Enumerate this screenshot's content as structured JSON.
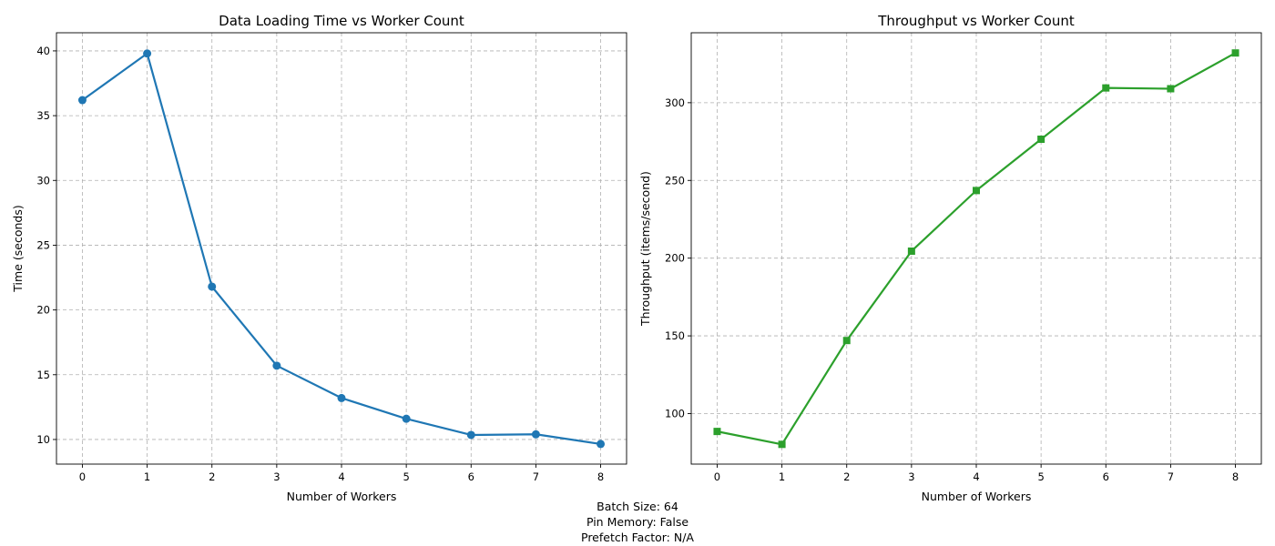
{
  "chart_data": [
    {
      "type": "line",
      "title": "Data Loading Time vs Worker Count",
      "xlabel": "Number of Workers",
      "ylabel": "Time (seconds)",
      "x": [
        0,
        1,
        2,
        3,
        4,
        5,
        6,
        7,
        8
      ],
      "series": [
        {
          "values": [
            36.2,
            39.8,
            21.8,
            15.7,
            13.2,
            11.6,
            10.35,
            10.4,
            9.65
          ],
          "color": "#1f77b4",
          "marker": "circle"
        }
      ],
      "xlim": [
        -0.4,
        8.4
      ],
      "ylim": [
        8.1,
        41.4
      ],
      "xticks": [
        0,
        1,
        2,
        3,
        4,
        5,
        6,
        7,
        8
      ],
      "yticks": [
        10,
        15,
        20,
        25,
        30,
        35,
        40
      ],
      "grid": true
    },
    {
      "type": "line",
      "title": "Throughput vs Worker Count",
      "xlabel": "Number of Workers",
      "ylabel": "Throughput (items/second)",
      "x": [
        0,
        1,
        2,
        3,
        4,
        5,
        6,
        7,
        8
      ],
      "series": [
        {
          "values": [
            88.5,
            80.2,
            147,
            204.5,
            243.5,
            276.5,
            309.5,
            309,
            332
          ],
          "color": "#2ca02c",
          "marker": "square"
        }
      ],
      "xlim": [
        -0.4,
        8.4
      ],
      "ylim": [
        67.5,
        345
      ],
      "xticks": [
        0,
        1,
        2,
        3,
        4,
        5,
        6,
        7,
        8
      ],
      "yticks": [
        100,
        150,
        200,
        250,
        300
      ],
      "grid": true
    }
  ],
  "footnote": {
    "batch_size": "Batch Size: 64",
    "pin_memory": "Pin Memory: False",
    "prefetch_factor": "Prefetch Factor: N/A"
  }
}
